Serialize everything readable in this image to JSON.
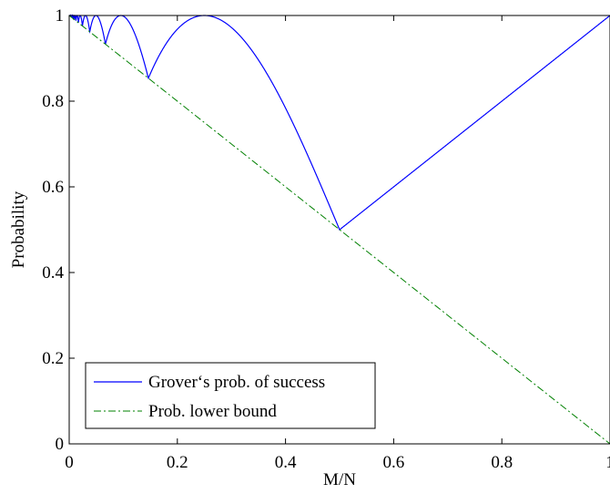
{
  "chart_data": {
    "type": "line",
    "xlabel": "M/N",
    "ylabel": "Probability",
    "xlim": [
      0,
      1
    ],
    "ylim": [
      0,
      1
    ],
    "xticks": [
      0,
      0.2,
      0.4,
      0.6,
      0.8,
      1
    ],
    "xtick_labels": [
      "0",
      "0.2",
      "0.4",
      "0.6",
      "0.8",
      "1"
    ],
    "yticks": [
      0,
      0.2,
      0.4,
      0.6,
      0.8,
      1
    ],
    "ytick_labels": [
      "0",
      "0.2",
      "0.4",
      "0.6",
      "0.8",
      "1"
    ],
    "grid": false,
    "legend_position": "bottom-left",
    "series": [
      {
        "name": "Grover‘s prob. of success",
        "style": "solid",
        "color": "#0000ff",
        "formula": "sin^2((2k+1)·asin(sqrt(x))), k = round(pi/(4·asin(sqrt(x))) - 1/2)",
        "x": [
          0,
          0.005,
          0.01,
          0.02,
          0.03,
          0.04,
          0.05,
          0.067,
          0.08,
          0.095,
          0.12,
          0.146,
          0.18,
          0.2,
          0.25,
          0.3,
          0.35,
          0.4,
          0.45,
          0.5,
          0.6,
          0.7,
          0.8,
          0.9,
          1.0
        ],
        "y": [
          1,
          0.99,
          0.99,
          0.99,
          0.97,
          0.99,
          0.99,
          0.93,
          0.98,
          1.0,
          0.95,
          0.85,
          0.95,
          0.99,
          1.0,
          0.97,
          0.89,
          0.77,
          0.64,
          0.5,
          0.6,
          0.7,
          0.8,
          0.9,
          1.0
        ]
      },
      {
        "name": "Prob. lower bound",
        "style": "dash-dot",
        "color": "#008000",
        "x": [
          0,
          1
        ],
        "y": [
          1,
          0
        ]
      }
    ]
  }
}
